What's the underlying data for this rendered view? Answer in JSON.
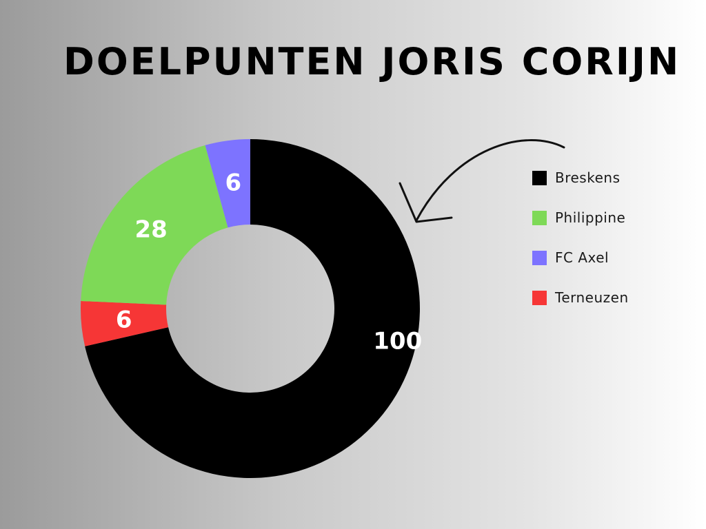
{
  "title": "DOELPUNTEN JORIS CORIJN",
  "chart_data": {
    "type": "pie",
    "variant": "donut",
    "categories": [
      "Breskens",
      "Terneuzen",
      "Philippine",
      "FC Axel"
    ],
    "values": [
      100,
      6,
      28,
      6
    ],
    "colors": [
      "#000000",
      "#f63636",
      "#7ed957",
      "#7d73ff"
    ],
    "data_labels": [
      "100",
      "6",
      "28",
      "6"
    ],
    "legend": {
      "position": "right",
      "items": [
        {
          "label": "Breskens",
          "color": "#000000"
        },
        {
          "label": "Philippine",
          "color": "#7ed957"
        },
        {
          "label": "FC Axel",
          "color": "#7d73ff"
        },
        {
          "label": "Terneuzen",
          "color": "#f63636"
        }
      ]
    }
  }
}
